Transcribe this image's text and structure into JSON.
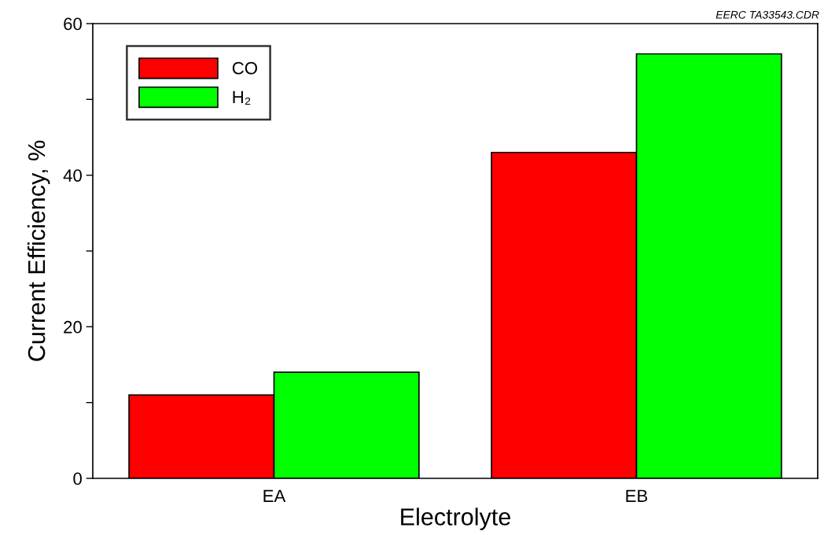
{
  "chart_data": {
    "type": "bar",
    "xlabel": "Electrolyte",
    "ylabel": "Current Efficiency, %",
    "categories": [
      "EA",
      "EB"
    ],
    "series": [
      {
        "name": "CO",
        "color": "#ff0000",
        "values": [
          11,
          43
        ]
      },
      {
        "name": "H₂",
        "color": "#00ff00",
        "values": [
          14,
          56
        ]
      }
    ],
    "ylim": [
      0,
      60
    ],
    "yticks": [
      0,
      {
        "value": 10,
        "label": null
      },
      20,
      {
        "value": 30,
        "label": null
      },
      40,
      {
        "value": 50,
        "label": null
      },
      60
    ],
    "grid": false,
    "legend": "top left",
    "annotations": [
      "EERC TA33543.CDR"
    ]
  }
}
